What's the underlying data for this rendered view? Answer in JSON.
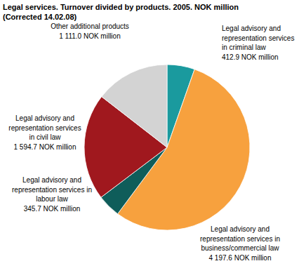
{
  "chart_data": {
    "type": "pie",
    "title": "Legal services. Turnover divided by products. 2005. NOK million",
    "subtitle": "(Corrected 14.02.08)",
    "categories": [
      "Legal advisory and representation services in criminal law",
      "Legal advisory and representation services in business/commercial law",
      "Legal advisory and representation services in labour law",
      "Legal advisory and representation services in civil law",
      "Other additional products"
    ],
    "values": [
      412.9,
      4197.6,
      345.7,
      1594.7,
      1111.0
    ],
    "value_labels": [
      "412.9 NOK million",
      "4 197.6 NOK million",
      "345.7 NOK million",
      "1 594.7 NOK million",
      "1 111.0 NOK million"
    ],
    "colors": [
      "#1a9a9e",
      "#f7a13e",
      "#0f5d5a",
      "#a0181e",
      "#d3d3d3"
    ],
    "data_labels": true
  }
}
